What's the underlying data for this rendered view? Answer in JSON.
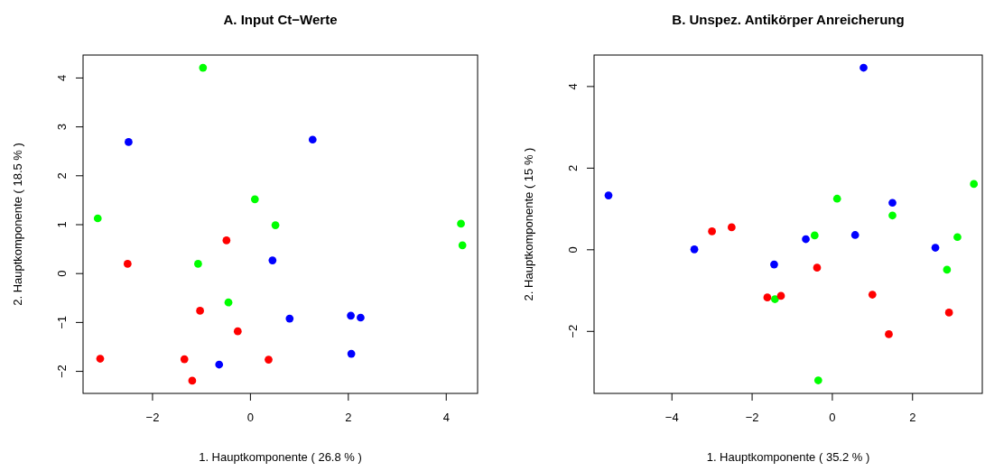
{
  "chart_data": [
    {
      "type": "scatter",
      "title": "A. Input Ct−Werte",
      "xlabel": "1. Hauptkomponente  ( 26.8 % )",
      "ylabel": "2. Hauptkomponente  ( 18.5 % )",
      "xlim": [
        -3.41,
        4.65
      ],
      "ylim": [
        -2.46,
        4.46
      ],
      "xticks": [
        -2,
        0,
        2,
        4
      ],
      "yticks": [
        -2,
        -1,
        0,
        1,
        2,
        3,
        4
      ],
      "marker": "circle",
      "grid": false,
      "series": [
        {
          "color": "#00ff00",
          "x": [
            -0.96,
            -3.11,
            0.1,
            0.52,
            4.31,
            4.34,
            -1.06,
            -0.44
          ],
          "values": [
            4.2,
            1.12,
            1.51,
            0.98,
            1.01,
            0.57,
            0.19,
            -0.6
          ]
        },
        {
          "color": "#0000ff",
          "x": [
            -2.48,
            1.28,
            0.46,
            0.81,
            2.06,
            2.26,
            2.07,
            -0.63
          ],
          "values": [
            2.68,
            2.73,
            0.26,
            -0.93,
            -0.87,
            -0.91,
            -1.65,
            -1.87
          ]
        },
        {
          "color": "#ff0000",
          "x": [
            -0.48,
            -2.5,
            -1.02,
            -0.25,
            -3.06,
            -1.34,
            0.38,
            -1.18
          ],
          "values": [
            0.67,
            0.19,
            -0.77,
            -1.19,
            -1.75,
            -1.76,
            -1.77,
            -2.2
          ]
        }
      ]
    },
    {
      "type": "scatter",
      "title": "B. Unspez. Antikörper Anreicherung",
      "xlabel": "1. Hauptkomponente  ( 35.2 % )",
      "ylabel": "2. Hauptkomponente  ( 15 % )",
      "xlim": [
        -5.93,
        3.75
      ],
      "ylim": [
        -3.53,
        4.76
      ],
      "xticks": [
        -4,
        -2,
        0,
        2
      ],
      "yticks": [
        -2,
        0,
        2,
        4
      ],
      "marker": "circle",
      "grid": false,
      "series": [
        {
          "color": "#0000ff",
          "x": [
            -5.57,
            -3.43,
            -1.44,
            -0.65,
            0.58,
            0.79,
            1.51,
            2.58
          ],
          "values": [
            1.32,
            0.0,
            -0.37,
            0.25,
            0.35,
            4.45,
            1.14,
            0.04
          ]
        },
        {
          "color": "#00ff00",
          "x": [
            -0.43,
            0.13,
            1.51,
            3.54,
            3.13,
            2.87,
            -1.42,
            -0.34
          ],
          "values": [
            0.34,
            1.24,
            0.83,
            1.6,
            0.3,
            -0.5,
            -1.22,
            -3.21
          ]
        },
        {
          "color": "#ff0000",
          "x": [
            -2.99,
            -2.5,
            -1.61,
            -1.27,
            -0.37,
            1.01,
            1.42,
            2.92
          ],
          "values": [
            0.44,
            0.54,
            -1.18,
            -1.14,
            -0.45,
            -1.11,
            -2.08,
            -1.55
          ]
        }
      ]
    }
  ]
}
